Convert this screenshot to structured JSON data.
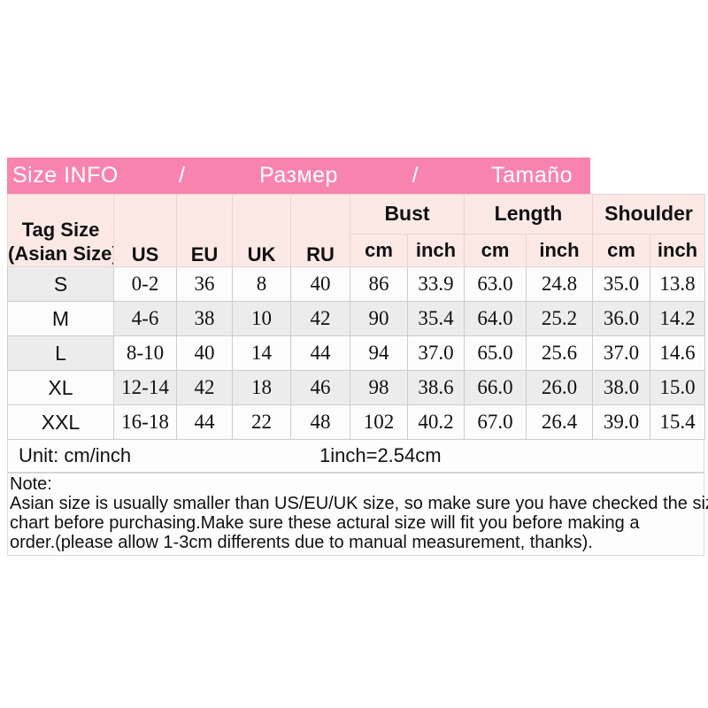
{
  "title_bar": {
    "items": [
      "Size INFO",
      "/",
      "Размер",
      "/",
      "Tamaño"
    ]
  },
  "table": {
    "tag_header_line1": "Tag Size",
    "tag_header_line2": "(Asian Size)",
    "region_headers": [
      "US",
      "EU",
      "UK",
      "RU"
    ],
    "group_headers": [
      "Bust",
      "Length",
      "Shoulder"
    ],
    "unit_header_cm": "cm",
    "unit_header_inch": "inch",
    "rows": [
      {
        "tag": "S",
        "us": "0-2",
        "eu": "36",
        "uk": "8",
        "ru": "40",
        "bust_cm": "86",
        "bust_inch": "33.9",
        "length_cm": "63.0",
        "length_inch": "24.8",
        "shoulder_cm": "35.0",
        "shoulder_inch": "13.8"
      },
      {
        "tag": "M",
        "us": "4-6",
        "eu": "38",
        "uk": "10",
        "ru": "42",
        "bust_cm": "90",
        "bust_inch": "35.4",
        "length_cm": "64.0",
        "length_inch": "25.2",
        "shoulder_cm": "36.0",
        "shoulder_inch": "14.2"
      },
      {
        "tag": "L",
        "us": "8-10",
        "eu": "40",
        "uk": "14",
        "ru": "44",
        "bust_cm": "94",
        "bust_inch": "37.0",
        "length_cm": "65.0",
        "length_inch": "25.6",
        "shoulder_cm": "37.0",
        "shoulder_inch": "14.6"
      },
      {
        "tag": "XL",
        "us": "12-14",
        "eu": "42",
        "uk": "18",
        "ru": "46",
        "bust_cm": "98",
        "bust_inch": "38.6",
        "length_cm": "66.0",
        "length_inch": "26.0",
        "shoulder_cm": "38.0",
        "shoulder_inch": "15.0"
      },
      {
        "tag": "XXL",
        "us": "16-18",
        "eu": "44",
        "uk": "22",
        "ru": "48",
        "bust_cm": "102",
        "bust_inch": "40.2",
        "length_cm": "67.0",
        "length_inch": "26.4",
        "shoulder_cm": "39.0",
        "shoulder_inch": "15.4"
      }
    ]
  },
  "unit_row": {
    "left": "Unit: cm/inch",
    "right": "1inch=2.54cm"
  },
  "note": {
    "label": "Note:",
    "lines": [
      "Asian size is usually smaller than US/EU/UK size, so make sure you have checked the size",
      "chart before purchasing.Make sure these actural size will fit you before making a",
      "order.(please allow 1-3cm differents due to manual measurement, thanks)."
    ]
  },
  "colors": {
    "title_bar_pink": "#f884ae",
    "header_pale_pink": "#fce9e6",
    "stripe_gray": "#ececec"
  }
}
